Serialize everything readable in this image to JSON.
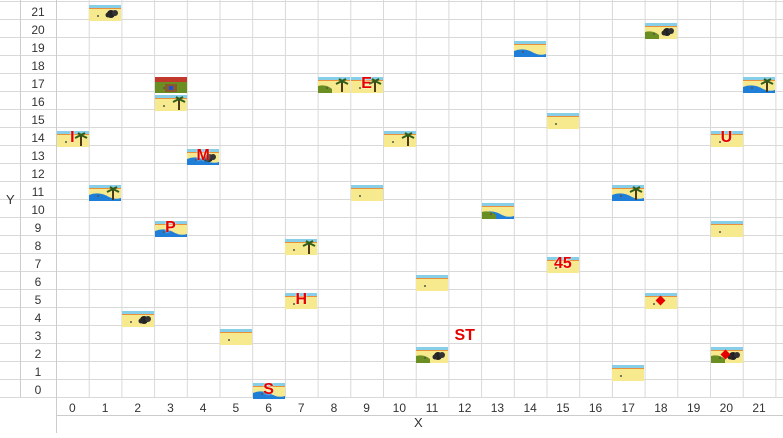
{
  "axes": {
    "x_title": "X",
    "y_title": "Y",
    "x_ticks": [
      "0",
      "1",
      "2",
      "3",
      "4",
      "5",
      "6",
      "7",
      "8",
      "9",
      "10",
      "11",
      "12",
      "13",
      "14",
      "15",
      "16",
      "17",
      "18",
      "19",
      "20",
      "21"
    ],
    "y_ticks": [
      "0",
      "1",
      "2",
      "3",
      "4",
      "5",
      "6",
      "7",
      "8",
      "9",
      "10",
      "11",
      "12",
      "13",
      "14",
      "15",
      "16",
      "17",
      "18",
      "19",
      "20",
      "21"
    ]
  },
  "tiles": [
    {
      "x": 1,
      "y": 21,
      "kind": "bush"
    },
    {
      "x": 18,
      "y": 20,
      "kind": "bush-grass"
    },
    {
      "x": 14,
      "y": 19,
      "kind": "water"
    },
    {
      "x": 3,
      "y": 17,
      "kind": "house"
    },
    {
      "x": 8,
      "y": 17,
      "kind": "palm-grass"
    },
    {
      "x": 9,
      "y": 17,
      "kind": "palm"
    },
    {
      "x": 21,
      "y": 17,
      "kind": "palm-water"
    },
    {
      "x": 3,
      "y": 16,
      "kind": "palm"
    },
    {
      "x": 15,
      "y": 15,
      "kind": "sand"
    },
    {
      "x": 0,
      "y": 14,
      "kind": "palm"
    },
    {
      "x": 10,
      "y": 14,
      "kind": "palm"
    },
    {
      "x": 20,
      "y": 14,
      "kind": "sand"
    },
    {
      "x": 4,
      "y": 13,
      "kind": "bush-water"
    },
    {
      "x": 1,
      "y": 11,
      "kind": "palm-water"
    },
    {
      "x": 9,
      "y": 11,
      "kind": "sand"
    },
    {
      "x": 17,
      "y": 11,
      "kind": "palm-water"
    },
    {
      "x": 13,
      "y": 10,
      "kind": "water-grass"
    },
    {
      "x": 3,
      "y": 9,
      "kind": "water"
    },
    {
      "x": 20,
      "y": 9,
      "kind": "sand"
    },
    {
      "x": 7,
      "y": 8,
      "kind": "palm"
    },
    {
      "x": 15,
      "y": 7,
      "kind": "sand"
    },
    {
      "x": 11,
      "y": 6,
      "kind": "sand"
    },
    {
      "x": 7,
      "y": 5,
      "kind": "sand"
    },
    {
      "x": 18,
      "y": 5,
      "kind": "sand"
    },
    {
      "x": 2,
      "y": 4,
      "kind": "bush"
    },
    {
      "x": 5,
      "y": 3,
      "kind": "sand"
    },
    {
      "x": 11,
      "y": 2,
      "kind": "bush-grass"
    },
    {
      "x": 20,
      "y": 2,
      "kind": "bush-grass"
    },
    {
      "x": 17,
      "y": 1,
      "kind": "sand"
    },
    {
      "x": 6,
      "y": 0,
      "kind": "water"
    }
  ],
  "labels": [
    {
      "x": 9,
      "y": 17,
      "text": "E"
    },
    {
      "x": 0,
      "y": 14,
      "text": "I"
    },
    {
      "x": 20,
      "y": 14,
      "text": "U"
    },
    {
      "x": 4,
      "y": 13,
      "text": "M"
    },
    {
      "x": 3,
      "y": 9,
      "text": "P"
    },
    {
      "x": 15,
      "y": 7,
      "text": "45"
    },
    {
      "x": 7,
      "y": 5,
      "text": "H"
    },
    {
      "x": 12,
      "y": 3,
      "text": "ST"
    },
    {
      "x": 6,
      "y": 0,
      "text": "S"
    }
  ],
  "markers": [
    {
      "x": 18,
      "y": 5,
      "shape": "diamond"
    },
    {
      "x": 20,
      "y": 2,
      "shape": "diamond"
    }
  ],
  "colors": {
    "grid": "#d9d9d9",
    "sky": "#87cfe8",
    "sand": "#f6e98e",
    "water": "#1f7fd8",
    "grass": "#6b8e23",
    "label": "#e60000"
  }
}
